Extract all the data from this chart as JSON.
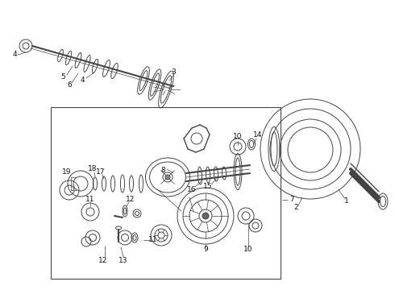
{
  "bg_color": "#ffffff",
  "line_color": "#444444",
  "label_color": "#111111",
  "fig_width": 4.9,
  "fig_height": 3.6,
  "dpi": 100
}
